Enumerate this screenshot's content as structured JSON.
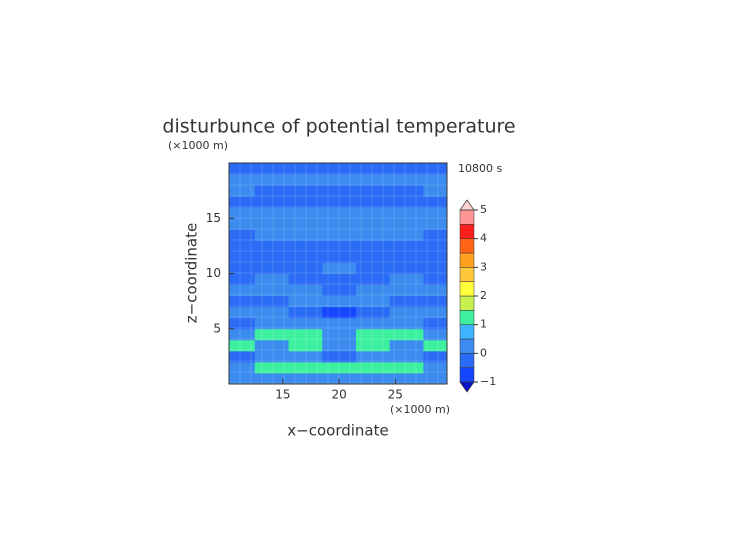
{
  "chart_data": {
    "type": "contour",
    "title": "disturbunce of potential temperature",
    "xlabel": "x−coordinate",
    "ylabel": "z−coordinate",
    "xunit": "(×1000 m)",
    "yunit": "(×1000 m)",
    "annotation": "10800 s",
    "x": [
      11,
      14,
      17,
      20,
      23,
      26,
      29
    ],
    "y": [
      0.5,
      1.5,
      2.5,
      3.5,
      4.5,
      5.5,
      6.5,
      7.5,
      8.5,
      9.5,
      10.5,
      11.5,
      12.5,
      13.5,
      14.5,
      15.5,
      16.5,
      17.5,
      18.5,
      19.5
    ],
    "z": [
      [
        0.2,
        0.2,
        0.2,
        0.2,
        0.2,
        0.2,
        0.2
      ],
      [
        0.2,
        1.2,
        1.2,
        1.2,
        1.2,
        1.2,
        0.2
      ],
      [
        -0.2,
        0.2,
        0.2,
        -0.2,
        0.2,
        0.2,
        -0.2
      ],
      [
        1.2,
        0.2,
        1.2,
        0.2,
        1.2,
        0.2,
        1.2
      ],
      [
        0.2,
        1.2,
        1.2,
        0.2,
        1.2,
        1.2,
        0.2
      ],
      [
        -0.2,
        0.2,
        0.2,
        0.2,
        0.2,
        0.2,
        -0.2
      ],
      [
        0.2,
        0.2,
        -0.2,
        -0.6,
        -0.2,
        0.2,
        0.2
      ],
      [
        -0.2,
        -0.2,
        0.2,
        0.2,
        0.2,
        -0.2,
        -0.2
      ],
      [
        0.2,
        0.2,
        0.2,
        -0.2,
        0.2,
        0.2,
        0.2
      ],
      [
        -0.2,
        0.2,
        -0.2,
        -0.2,
        -0.2,
        0.2,
        -0.2
      ],
      [
        -0.2,
        -0.2,
        -0.2,
        0.2,
        -0.2,
        -0.2,
        -0.2
      ],
      [
        -0.2,
        -0.2,
        -0.2,
        -0.2,
        -0.2,
        -0.2,
        -0.2
      ],
      [
        -0.2,
        -0.2,
        -0.2,
        -0.2,
        -0.2,
        -0.2,
        -0.2
      ],
      [
        -0.2,
        0.2,
        0.2,
        0.2,
        0.2,
        0.2,
        -0.2
      ],
      [
        0.2,
        0.2,
        0.2,
        0.2,
        0.2,
        0.2,
        0.2
      ],
      [
        0.2,
        0.2,
        0.2,
        0.2,
        0.2,
        0.2,
        0.2
      ],
      [
        -0.2,
        -0.2,
        -0.2,
        -0.2,
        -0.2,
        -0.2,
        -0.2
      ],
      [
        0.2,
        -0.2,
        -0.2,
        -0.2,
        -0.2,
        -0.2,
        0.2
      ],
      [
        0.2,
        0.2,
        0.2,
        0.2,
        0.2,
        0.2,
        0.2
      ],
      [
        -0.2,
        -0.2,
        -0.2,
        -0.2,
        -0.2,
        -0.2,
        -0.2
      ]
    ],
    "xlim": [
      10.2,
      29.6
    ],
    "ylim": [
      0,
      20
    ],
    "xticks": [
      15,
      20,
      25
    ],
    "yticks": [
      5,
      10,
      15
    ],
    "colorbar": {
      "levels": [
        -1,
        -0.5,
        0,
        0.5,
        1,
        1.5,
        2,
        2.5,
        3,
        3.5,
        4,
        4.5,
        5
      ],
      "colors": [
        "#1446ff",
        "#2a6cf5",
        "#3c8cf0",
        "#3cb4ff",
        "#3cf0a0",
        "#c8f050",
        "#ffff3c",
        "#ffc83c",
        "#ffa01e",
        "#ff6414",
        "#ff1e1e",
        "#ff9696"
      ],
      "under_color": "#0a14c8",
      "over_color": "#ffd2d2",
      "ticks": [
        {
          "value": -1,
          "label": "−1"
        },
        0,
        1,
        2,
        3,
        4,
        5
      ]
    }
  }
}
